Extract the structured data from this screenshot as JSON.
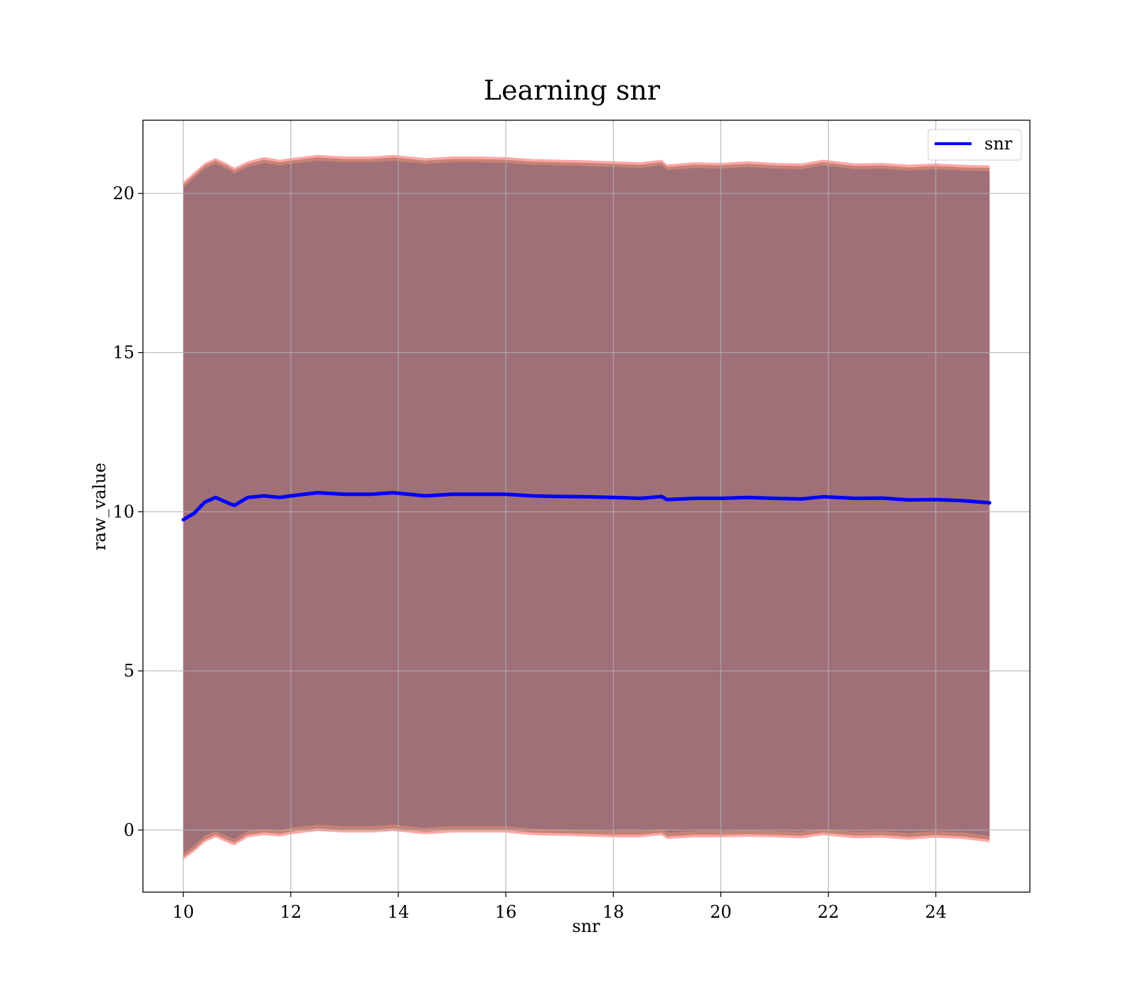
{
  "chart_data": {
    "type": "line",
    "title": "Learning snr",
    "xlabel": "snr",
    "ylabel": "raw_value",
    "xlim": [
      9.25,
      25.75
    ],
    "ylim": [
      -1.95,
      22.3
    ],
    "xticks": [
      10,
      12,
      14,
      16,
      18,
      20,
      22,
      24
    ],
    "xtick_labels": [
      "10",
      "12",
      "14",
      "16",
      "18",
      "20",
      "22",
      "24"
    ],
    "yticks": [
      0,
      5,
      10,
      15,
      20
    ],
    "ytick_labels": [
      "0",
      "5",
      "10",
      "15",
      "20"
    ],
    "grid": true,
    "legend": {
      "position": "top-right",
      "entries": [
        "snr"
      ]
    },
    "colors": {
      "line": "#0000ff",
      "band_outer": "#ff8080",
      "band_middle": "#c08070",
      "band_inner": "#a07078",
      "grid": "#b0b0b0"
    },
    "series": [
      {
        "name": "snr",
        "x": [
          10.0,
          10.2,
          10.4,
          10.6,
          10.8,
          10.95,
          11.2,
          11.5,
          11.8,
          12.0,
          12.5,
          13.0,
          13.5,
          13.9,
          14.5,
          15.0,
          15.5,
          16.0,
          16.5,
          17.0,
          17.5,
          18.0,
          18.5,
          18.9,
          19.0,
          19.5,
          20.0,
          20.5,
          21.0,
          21.5,
          21.9,
          22.5,
          23.0,
          23.5,
          24.0,
          24.5,
          25.0
        ],
        "y": [
          9.75,
          9.95,
          10.3,
          10.45,
          10.3,
          10.2,
          10.45,
          10.5,
          10.45,
          10.5,
          10.6,
          10.55,
          10.55,
          10.6,
          10.5,
          10.55,
          10.55,
          10.55,
          10.5,
          10.48,
          10.47,
          10.45,
          10.42,
          10.48,
          10.38,
          10.42,
          10.42,
          10.45,
          10.42,
          10.4,
          10.47,
          10.42,
          10.43,
          10.37,
          10.38,
          10.35,
          10.28
        ],
        "band_upper": [
          20.2,
          20.5,
          20.8,
          20.95,
          20.8,
          20.65,
          20.85,
          20.98,
          20.9,
          20.95,
          21.05,
          21.0,
          21.0,
          21.05,
          20.95,
          21.0,
          21.0,
          20.98,
          20.92,
          20.9,
          20.88,
          20.85,
          20.82,
          20.9,
          20.75,
          20.82,
          20.8,
          20.85,
          20.8,
          20.78,
          20.9,
          20.78,
          20.8,
          20.74,
          20.78,
          20.74,
          20.72
        ],
        "band_lower": [
          -0.75,
          -0.5,
          -0.2,
          -0.05,
          -0.2,
          -0.3,
          -0.05,
          0.02,
          -0.02,
          0.05,
          0.15,
          0.1,
          0.1,
          0.15,
          0.05,
          0.1,
          0.1,
          0.1,
          0.02,
          0.0,
          -0.02,
          -0.05,
          -0.05,
          0.02,
          -0.1,
          -0.05,
          -0.05,
          -0.03,
          -0.05,
          -0.08,
          0.02,
          -0.08,
          -0.06,
          -0.12,
          -0.06,
          -0.1,
          -0.2
        ]
      }
    ]
  }
}
